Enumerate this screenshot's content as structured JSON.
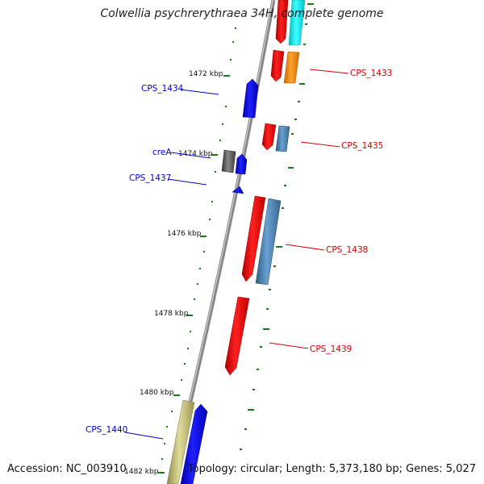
{
  "title": "Colwellia psychrerythraea 34H, complete genome",
  "footer": {
    "accession": "Accession: NC_003910",
    "summary": "Topology: circular; Length: 5,373,180 bp; Genes: 5,027"
  },
  "ticks": [
    "1472 kbp",
    "1474 kbp",
    "1476 kbp",
    "1478 kbp",
    "1480 kbp",
    "1482 kbp"
  ],
  "gene_labels": [
    "CPS_1433",
    "CPS_1434",
    "CPS_1435",
    "creA",
    "CPS_1437",
    "CPS_1438",
    "CPS_1439",
    "CPS_1440"
  ],
  "colors": {
    "forward_gene": "#0000ff",
    "reverse_gene": "#ff0000",
    "reverse_label": "#cc0000",
    "forward_label": "#0000cc",
    "backbone": "#888888",
    "ruler": "#1a7a1a",
    "cyan_gene": "#00e5ee",
    "orange_gene": "#ff8c00",
    "steelblue_gene": "#4682b4",
    "gray_gene": "#555555",
    "khaki_gene": "#bdb76b"
  }
}
